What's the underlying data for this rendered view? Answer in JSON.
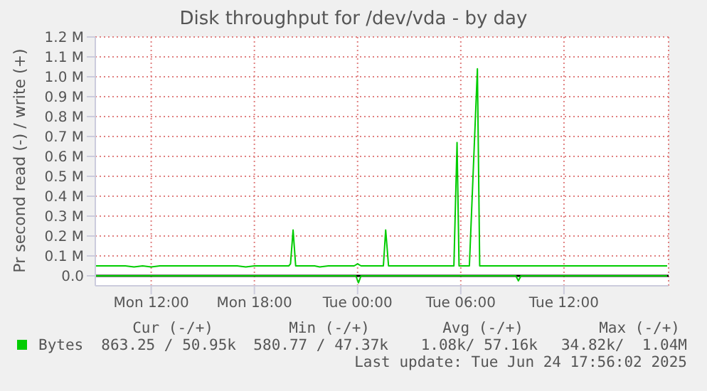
{
  "chart_data": {
    "type": "line",
    "title": "Disk throughput for /dev/vda - by day",
    "ylabel": "Pr second read (-) / write (+)",
    "xlim": [
      "2025-06-23T08:45",
      "2025-06-24T18:05"
    ],
    "xticks": [
      {
        "value": "2025-06-23T12:00",
        "label": "Mon 12:00"
      },
      {
        "value": "2025-06-23T18:00",
        "label": "Mon 18:00"
      },
      {
        "value": "2025-06-24T00:00",
        "label": "Tue 00:00"
      },
      {
        "value": "2025-06-24T06:00",
        "label": "Tue 06:00"
      },
      {
        "value": "2025-06-24T12:00",
        "label": "Tue 12:00"
      }
    ],
    "ylim": [
      -0.05,
      1.2
    ],
    "yticks": [
      {
        "value": 0,
        "label": "0.0"
      },
      {
        "value": 0.1,
        "label": "0.1 M"
      },
      {
        "value": 0.2,
        "label": "0.2 M"
      },
      {
        "value": 0.3,
        "label": "0.3 M"
      },
      {
        "value": 0.4,
        "label": "0.4 M"
      },
      {
        "value": 0.5,
        "label": "0.5 M"
      },
      {
        "value": 0.6,
        "label": "0.6 M"
      },
      {
        "value": 0.7,
        "label": "0.7 M"
      },
      {
        "value": 0.8,
        "label": "0.8 M"
      },
      {
        "value": 0.9,
        "label": "0.9 M"
      },
      {
        "value": 1.0,
        "label": "1.0 M"
      },
      {
        "value": 1.1,
        "label": "1.1 M"
      },
      {
        "value": 1.2,
        "label": "1.2 M"
      }
    ],
    "grid": true,
    "legend": "bottom left",
    "marker": "none",
    "line_style": "solid",
    "series": [
      {
        "name": "Bytes",
        "color": "#00cc00",
        "x": [
          "2025-06-23T08:45",
          "2025-06-23T10:30",
          "2025-06-23T11:00",
          "2025-06-23T11:30",
          "2025-06-23T12:00",
          "2025-06-23T12:30",
          "2025-06-23T17:00",
          "2025-06-23T17:30",
          "2025-06-23T18:00",
          "2025-06-23T20:00",
          "2025-06-23T20:06",
          "2025-06-23T20:15",
          "2025-06-23T20:24",
          "2025-06-23T21:30",
          "2025-06-23T21:48",
          "2025-06-23T22:18",
          "2025-06-23T23:48",
          "2025-06-24T00:00",
          "2025-06-24T00:12",
          "2025-06-24T01:30",
          "2025-06-24T01:38",
          "2025-06-24T01:48",
          "2025-06-24T05:36",
          "2025-06-24T05:47",
          "2025-06-24T05:54",
          "2025-06-24T06:30",
          "2025-06-24T06:58",
          "2025-06-24T07:06",
          "2025-06-24T18:00"
        ],
        "values": [
          0.05,
          0.05,
          0.045,
          0.05,
          0.045,
          0.05,
          0.05,
          0.045,
          0.05,
          0.05,
          0.06,
          0.23,
          0.05,
          0.05,
          0.045,
          0.05,
          0.05,
          0.06,
          0.05,
          0.05,
          0.23,
          0.05,
          0.05,
          0.67,
          0.05,
          0.05,
          1.04,
          0.05,
          0.05
        ]
      },
      {
        "color": "#00cc00",
        "x": [
          "2025-06-23T08:45",
          "2025-06-23T23:54",
          "2025-06-24T00:03",
          "2025-06-24T00:12",
          "2025-06-24T09:12",
          "2025-06-24T09:21",
          "2025-06-24T09:30",
          "2025-06-24T18:00"
        ],
        "values": [
          0,
          0,
          -0.035,
          0,
          0,
          -0.025,
          0,
          0
        ]
      }
    ],
    "ref_lines": [
      {
        "axis": "y",
        "value": 0,
        "color": "#000000"
      }
    ],
    "annotations": [
      "Cur (-/+)",
      "Min (-/+)",
      "Avg (-/+)",
      "Max (-/+)",
      "863.25 / 50.95k",
      "580.77 / 47.37k",
      "1.08k/ 57.16k",
      "34.82k/  1.04M",
      "Last update: Tue Jun 24 17:56:02 2025"
    ]
  }
}
